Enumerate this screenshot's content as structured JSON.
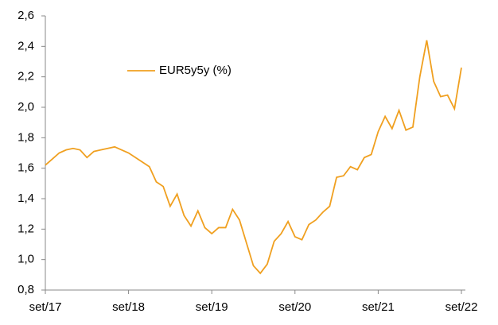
{
  "chart_data": {
    "type": "line",
    "categories": [
      "set/17",
      null,
      null,
      null,
      null,
      null,
      null,
      null,
      null,
      null,
      null,
      null,
      "set/18",
      null,
      null,
      null,
      null,
      null,
      null,
      null,
      null,
      null,
      null,
      null,
      "set/19",
      null,
      null,
      null,
      null,
      null,
      null,
      null,
      null,
      null,
      null,
      null,
      "set/20",
      null,
      null,
      null,
      null,
      null,
      null,
      null,
      null,
      null,
      null,
      null,
      "set/21",
      null,
      null,
      null,
      null,
      null,
      null,
      null,
      null,
      null,
      null,
      null,
      "set/22"
    ],
    "series": [
      {
        "name": "EUR5y5y (%)",
        "color": "#f0a020",
        "values": [
          1.62,
          1.66,
          1.7,
          1.72,
          1.73,
          1.72,
          1.67,
          1.71,
          1.72,
          1.73,
          1.74,
          1.72,
          1.7,
          1.67,
          1.64,
          1.61,
          1.51,
          1.48,
          1.35,
          1.43,
          1.29,
          1.22,
          1.32,
          1.21,
          1.17,
          1.21,
          1.21,
          1.33,
          1.26,
          1.11,
          0.96,
          0.91,
          0.97,
          1.12,
          1.17,
          1.25,
          1.15,
          1.13,
          1.23,
          1.26,
          1.31,
          1.35,
          1.54,
          1.55,
          1.61,
          1.59,
          1.67,
          1.69,
          1.84,
          1.94,
          1.86,
          1.98,
          1.85,
          1.87,
          2.2,
          2.44,
          2.17,
          2.07,
          2.08,
          1.99,
          2.26
        ]
      }
    ],
    "ylim": [
      0.8,
      2.6
    ],
    "yticks": [
      {
        "value": 0.8,
        "label": "0,8"
      },
      {
        "value": 1.0,
        "label": "1,0"
      },
      {
        "value": 1.2,
        "label": "1,2"
      },
      {
        "value": 1.4,
        "label": "1,4"
      },
      {
        "value": 1.6,
        "label": "1,6"
      },
      {
        "value": 1.8,
        "label": "1,8"
      },
      {
        "value": 2.0,
        "label": "2,0"
      },
      {
        "value": 2.2,
        "label": "2,2"
      },
      {
        "value": 2.4,
        "label": "2,4"
      },
      {
        "value": 2.6,
        "label": "2,6"
      }
    ],
    "grid": false,
    "legend": "top-left"
  }
}
